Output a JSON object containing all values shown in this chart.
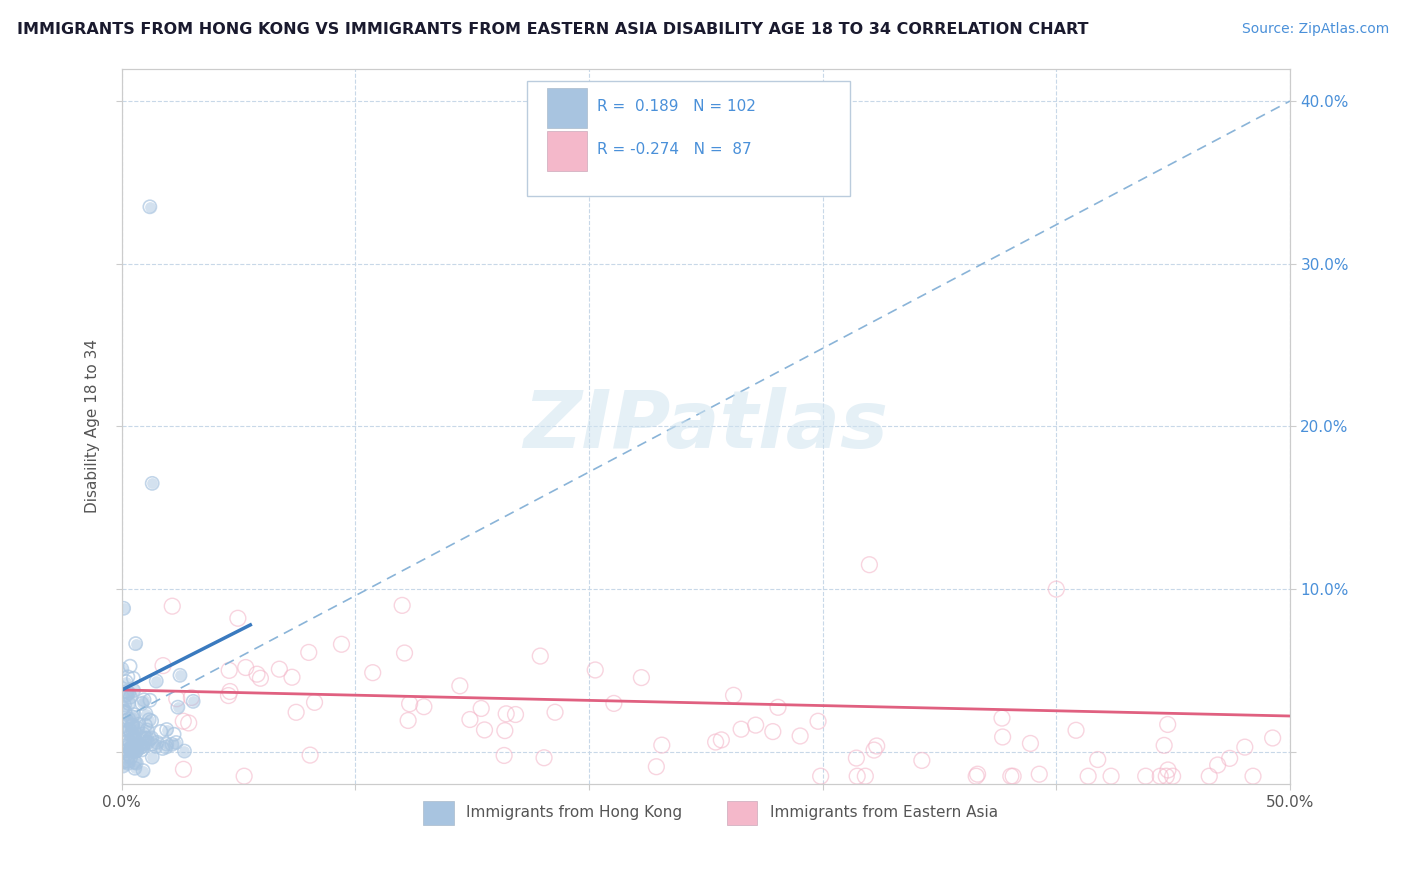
{
  "title": "IMMIGRANTS FROM HONG KONG VS IMMIGRANTS FROM EASTERN ASIA DISABILITY AGE 18 TO 34 CORRELATION CHART",
  "source_text": "Source: ZipAtlas.com",
  "ylabel": "Disability Age 18 to 34",
  "xlim": [
    0.0,
    0.5
  ],
  "ylim": [
    -0.02,
    0.42
  ],
  "x_ticks": [
    0.0,
    0.1,
    0.2,
    0.3,
    0.4,
    0.5
  ],
  "x_tick_labels": [
    "0.0%",
    "",
    "",
    "",
    "",
    "50.0%"
  ],
  "y_ticks": [
    0.0,
    0.1,
    0.2,
    0.3,
    0.4
  ],
  "y_tick_labels_right": [
    "",
    "10.0%",
    "20.0%",
    "30.0%",
    "40.0%"
  ],
  "hk_R": 0.189,
  "hk_N": 102,
  "ea_R": -0.274,
  "ea_N": 87,
  "hk_scatter_color": "#a8c4e0",
  "ea_scatter_color": "#f4b8ca",
  "hk_line_color": "#3a7abf",
  "ea_line_color": "#e06080",
  "dashed_line_color": "#8ab4d8",
  "watermark_color": "#d0e4f0",
  "legend_label_hk": "Immigrants from Hong Kong",
  "legend_label_ea": "Immigrants from Eastern Asia",
  "background_color": "#ffffff",
  "grid_color": "#c8d8e8",
  "title_color": "#1a1a2e",
  "source_color": "#4a90d9",
  "right_tick_color": "#4a90d9",
  "axis_label_color": "#555555"
}
